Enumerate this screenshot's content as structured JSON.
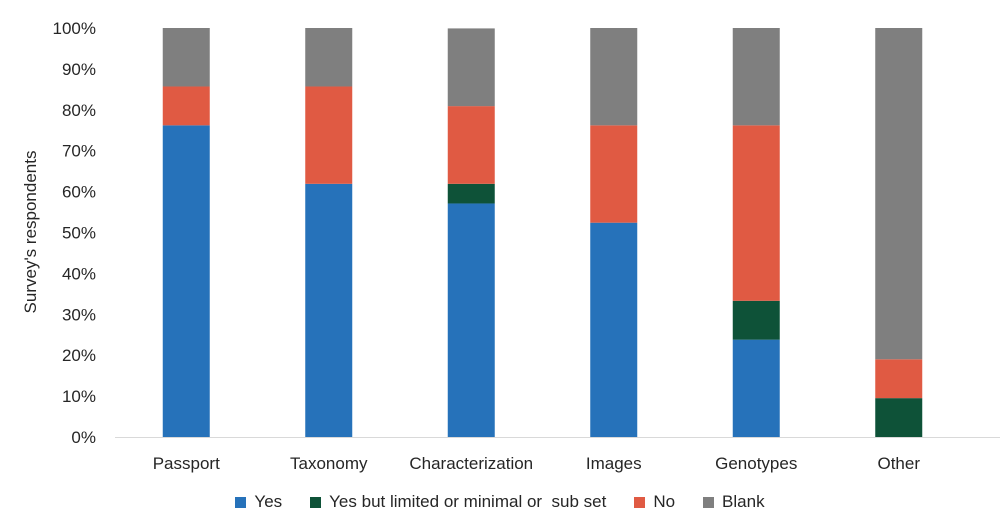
{
  "chart_data": {
    "type": "bar",
    "stacked": true,
    "title": "",
    "xlabel": "",
    "ylabel": "Survey's respondents",
    "ylim": [
      0,
      100
    ],
    "y_ticks": [
      "0%",
      "10%",
      "20%",
      "30%",
      "40%",
      "50%",
      "60%",
      "70%",
      "80%",
      "90%",
      "100%"
    ],
    "categories": [
      "Passport",
      "Taxonomy",
      "Characterization",
      "Images",
      "Genotypes",
      "Other"
    ],
    "series": [
      {
        "name": "Yes",
        "color": "#2672BA",
        "values": [
          76.2,
          61.9,
          57.1,
          52.4,
          23.8,
          0
        ]
      },
      {
        "name": "Yes but limited or minimal or  sub set",
        "color": "#0E5238",
        "values": [
          0,
          0,
          4.8,
          0,
          9.5,
          9.5
        ]
      },
      {
        "name": "No",
        "color": "#E05A43",
        "values": [
          9.5,
          23.8,
          19.0,
          23.8,
          42.9,
          9.5
        ]
      },
      {
        "name": "Blank",
        "color": "#7F7F7F",
        "values": [
          14.3,
          14.3,
          19.0,
          23.8,
          23.8,
          81.0
        ]
      }
    ],
    "grid": false,
    "legend_position": "bottom"
  }
}
